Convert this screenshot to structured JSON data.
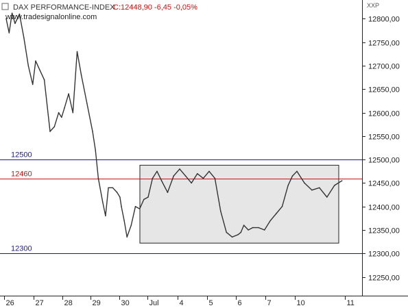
{
  "chart_data": {
    "type": "line",
    "title": "DAX PERFORMANCE-INDEX",
    "quote": "C:12448,90 -6,45 -0,05%",
    "source": "www.tradesignalonline.com",
    "axis_unit_label": "XXP",
    "ylim": [
      12210,
      12840
    ],
    "y_ticks": [
      {
        "value": 12250,
        "label": "12250,00"
      },
      {
        "value": 12300,
        "label": "12300,00"
      },
      {
        "value": 12350,
        "label": "12350,00"
      },
      {
        "value": 12400,
        "label": "12400,00"
      },
      {
        "value": 12450,
        "label": "12450,00"
      },
      {
        "value": 12500,
        "label": "12500,00"
      },
      {
        "value": 12550,
        "label": "12550,00"
      },
      {
        "value": 12600,
        "label": "12600,00"
      },
      {
        "value": 12650,
        "label": "12650,00"
      },
      {
        "value": 12700,
        "label": "12700,00"
      },
      {
        "value": 12750,
        "label": "12750,00"
      },
      {
        "value": 12800,
        "label": "12800,00"
      }
    ],
    "x_ticks": [
      "26",
      "27",
      "28",
      "29",
      "30",
      "Jul",
      "4",
      "5",
      "6",
      "7",
      "10",
      "11"
    ],
    "grid": false,
    "hlines": [
      {
        "value": 12500,
        "label": "12500",
        "color": "#1a1a8a"
      },
      {
        "value": 12460,
        "label": "12460",
        "color": "#cc1111"
      },
      {
        "value": 12300,
        "label": "12300",
        "color": "#1a1a8a"
      }
    ],
    "range_box": {
      "from": "30",
      "to": "10",
      "low": 12322,
      "high": 12488,
      "fill": "#e6e6e6"
    },
    "series": [
      {
        "line_color": "#333333",
        "x": [
          0.0,
          0.1,
          0.2,
          0.3,
          0.45,
          0.6,
          0.75,
          0.9,
          1.0,
          1.15,
          1.3,
          1.5,
          1.65,
          1.8,
          1.9,
          2.0,
          2.15,
          2.3,
          2.45,
          2.6,
          2.8,
          3.0,
          3.1,
          3.2,
          3.35,
          3.45,
          3.55,
          3.7,
          3.85,
          3.95,
          4.0,
          4.1,
          4.2,
          4.35,
          4.5,
          4.65,
          4.8,
          4.95,
          5.1,
          5.25,
          5.4,
          5.6,
          5.8,
          6.0,
          6.2,
          6.4,
          6.6,
          6.8,
          7.0,
          7.2,
          7.4,
          7.6,
          7.8,
          8.0,
          8.1,
          8.2,
          8.35,
          8.5,
          8.7,
          8.9,
          9.1,
          9.3,
          9.5,
          9.7,
          9.85,
          10.0,
          10.15,
          10.3,
          10.45,
          10.6,
          10.75,
          10.9
        ],
        "values": [
          12800,
          12770,
          12812,
          12790,
          12810,
          12760,
          12700,
          12660,
          12710,
          12690,
          12670,
          12560,
          12570,
          12600,
          12590,
          12610,
          12640,
          12600,
          12730,
          12680,
          12620,
          12560,
          12520,
          12460,
          12410,
          12380,
          12440,
          12440,
          12430,
          12420,
          12400,
          12370,
          12335,
          12360,
          12400,
          12395,
          12415,
          12420,
          12460,
          12475,
          12455,
          12430,
          12465,
          12480,
          12465,
          12450,
          12470,
          12460,
          12475,
          12460,
          12390,
          12345,
          12335,
          12340,
          12345,
          12360,
          12350,
          12355,
          12355,
          12350,
          12370,
          12385,
          12400,
          12445,
          12465,
          12475,
          12450,
          12435,
          12440,
          12420,
          12445,
          12455
        ]
      }
    ]
  }
}
